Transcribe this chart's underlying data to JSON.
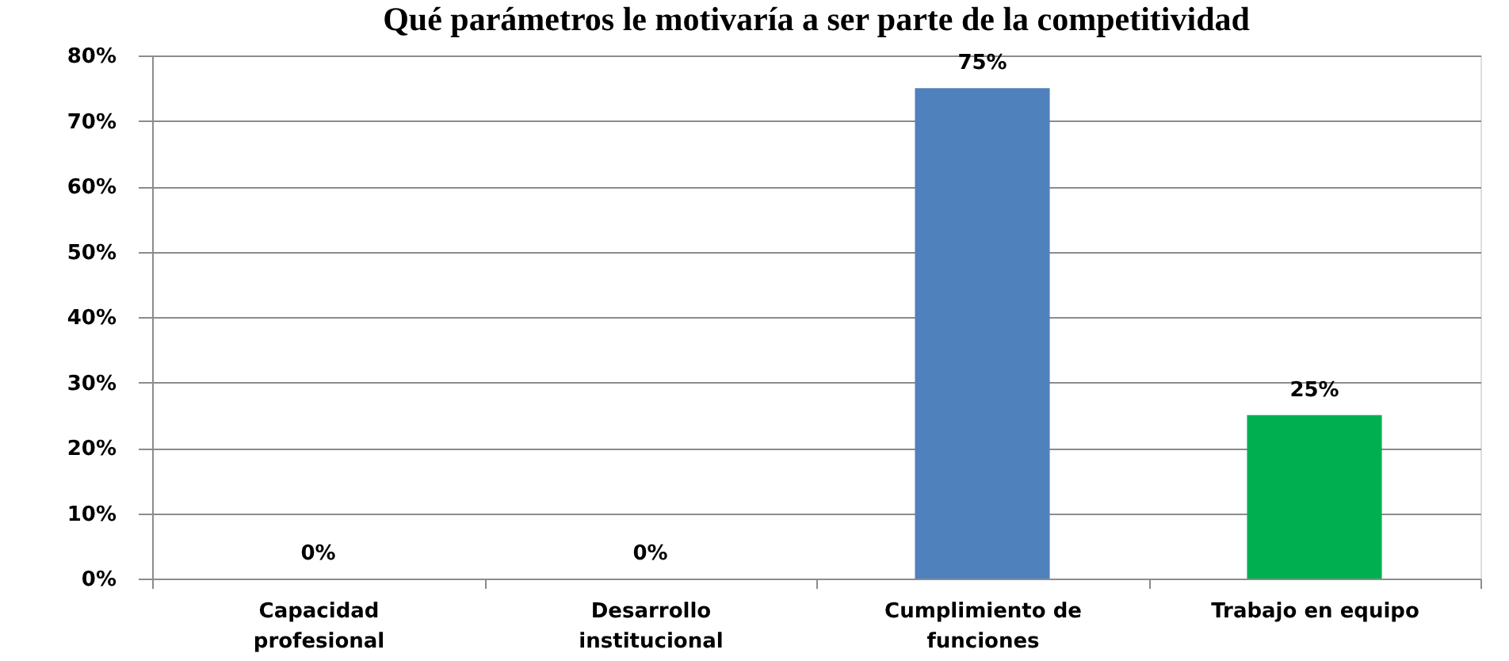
{
  "chart_data": {
    "type": "bar",
    "title": "Qué parámetros le motivaría a ser parte de la competitividad",
    "categories": [
      "Capacidad profesional",
      "Desarrollo institucional",
      "Cumplimiento de funciones",
      "Trabajo en equipo"
    ],
    "values": [
      0,
      0,
      75,
      25
    ],
    "colors": [
      "#4f81bd",
      "#4f81bd",
      "#4f81bd",
      "#00b050"
    ],
    "value_labels": [
      "0%",
      "0%",
      "75%",
      "25%"
    ],
    "ylim": [
      0,
      80
    ],
    "yticks": [
      {
        "value": 0,
        "label": "0%"
      },
      {
        "value": 10,
        "label": "10%"
      },
      {
        "value": 20,
        "label": "20%"
      },
      {
        "value": 30,
        "label": "30%"
      },
      {
        "value": 40,
        "label": "40%"
      },
      {
        "value": 50,
        "label": "50%"
      },
      {
        "value": 60,
        "label": "60%"
      },
      {
        "value": 70,
        "label": "70%"
      },
      {
        "value": 80,
        "label": "80%"
      }
    ],
    "grid": "y"
  }
}
